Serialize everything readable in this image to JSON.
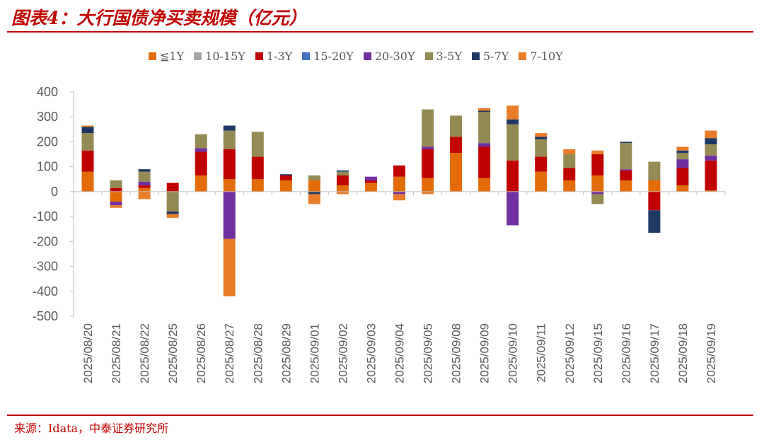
{
  "header": {
    "title": "图表4：大行国债净买卖规模（亿元）"
  },
  "footer": {
    "source": "来源：Idata，中泰证券研究所"
  },
  "colors": {
    "brand_red": "#c00000"
  },
  "chart_data": {
    "type": "bar",
    "stacked": true,
    "categories": [
      "2025/08/20",
      "2025/08/21",
      "2025/08/22",
      "2025/08/25",
      "2025/08/26",
      "2025/08/27",
      "2025/08/28",
      "2025/08/29",
      "2025/09/01",
      "2025/09/02",
      "2025/09/03",
      "2025/09/04",
      "2025/09/05",
      "2025/09/08",
      "2025/09/09",
      "2025/09/10",
      "2025/09/11",
      "2025/09/12",
      "2025/09/15",
      "2025/09/16",
      "2025/09/17",
      "2025/09/18",
      "2025/09/19"
    ],
    "ylim": [
      -500,
      400
    ],
    "yticks": [
      400,
      300,
      200,
      100,
      0,
      -100,
      -200,
      -300,
      -400,
      -500
    ],
    "grid": false,
    "legend_position": "top",
    "series": [
      {
        "name": "≦1Y",
        "color": "#e36c09",
        "values": [
          80,
          -40,
          15,
          0,
          65,
          50,
          50,
          45,
          45,
          25,
          35,
          60,
          55,
          155,
          55,
          0,
          80,
          45,
          65,
          45,
          45,
          25,
          5
        ]
      },
      {
        "name": "10-15Y",
        "color": "#a5a5a5",
        "values": [
          0,
          0,
          0,
          0,
          0,
          0,
          0,
          0,
          0,
          0,
          0,
          0,
          0,
          0,
          0,
          0,
          0,
          0,
          0,
          0,
          0,
          0,
          0
        ]
      },
      {
        "name": "1-3Y",
        "color": "#c00000",
        "values": [
          85,
          15,
          10,
          35,
          95,
          120,
          90,
          20,
          0,
          40,
          10,
          45,
          115,
          65,
          125,
          125,
          60,
          50,
          85,
          40,
          -75,
          70,
          120
        ]
      },
      {
        "name": "15-20Y",
        "color": "#4472c4",
        "values": [
          0,
          0,
          0,
          0,
          0,
          0,
          0,
          0,
          0,
          0,
          0,
          0,
          0,
          0,
          0,
          0,
          0,
          0,
          0,
          0,
          0,
          0,
          0
        ]
      },
      {
        "name": "20-30Y",
        "color": "#7030a0",
        "values": [
          0,
          -15,
          15,
          0,
          15,
          -190,
          0,
          0,
          0,
          0,
          15,
          -10,
          10,
          0,
          15,
          -135,
          0,
          0,
          -10,
          5,
          0,
          35,
          20
        ]
      },
      {
        "name": "3-5Y",
        "color": "#948a54",
        "values": [
          70,
          30,
          40,
          -80,
          55,
          75,
          100,
          0,
          20,
          15,
          0,
          0,
          150,
          85,
          125,
          145,
          70,
          55,
          -40,
          105,
          75,
          25,
          45
        ]
      },
      {
        "name": "5-7Y",
        "color": "#1f3864",
        "values": [
          25,
          0,
          10,
          -10,
          0,
          20,
          0,
          5,
          -10,
          5,
          0,
          0,
          0,
          0,
          5,
          20,
          10,
          0,
          0,
          5,
          -90,
          10,
          25
        ]
      },
      {
        "name": "7-10Y",
        "color": "#e87c2a",
        "values": [
          5,
          -10,
          -30,
          -15,
          0,
          -230,
          0,
          0,
          -40,
          -10,
          0,
          -25,
          -10,
          0,
          10,
          55,
          15,
          20,
          15,
          0,
          0,
          15,
          30
        ]
      }
    ]
  }
}
